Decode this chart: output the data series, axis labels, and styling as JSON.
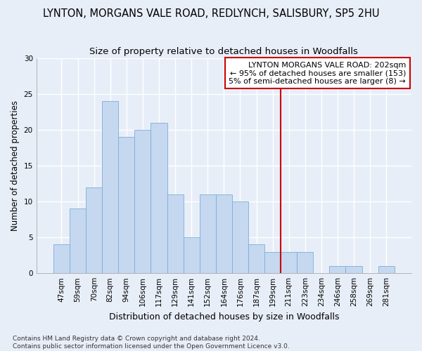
{
  "title": "LYNTON, MORGANS VALE ROAD, REDLYNCH, SALISBURY, SP5 2HU",
  "subtitle": "Size of property relative to detached houses in Woodfalls",
  "xlabel": "Distribution of detached houses by size in Woodfalls",
  "ylabel": "Number of detached properties",
  "categories": [
    "47sqm",
    "59sqm",
    "70sqm",
    "82sqm",
    "94sqm",
    "106sqm",
    "117sqm",
    "129sqm",
    "141sqm",
    "152sqm",
    "164sqm",
    "176sqm",
    "187sqm",
    "199sqm",
    "211sqm",
    "223sqm",
    "234sqm",
    "246sqm",
    "258sqm",
    "269sqm",
    "281sqm"
  ],
  "values": [
    4,
    9,
    12,
    24,
    19,
    20,
    21,
    11,
    5,
    11,
    11,
    10,
    4,
    3,
    3,
    3,
    0,
    1,
    1,
    0,
    1
  ],
  "bar_color": "#c5d8f0",
  "bar_edge_color": "#7aaed6",
  "vline_x_index": 13,
  "vline_color": "#cc0000",
  "annotation_text": "LYNTON MORGANS VALE ROAD: 202sqm\n← 95% of detached houses are smaller (153)\n5% of semi-detached houses are larger (8) →",
  "annotation_box_color": "#ffffff",
  "annotation_box_edge_color": "#cc0000",
  "ylim": [
    0,
    30
  ],
  "yticks": [
    0,
    5,
    10,
    15,
    20,
    25,
    30
  ],
  "background_color": "#e8eef8",
  "grid_color": "#ffffff",
  "footer_text": "Contains HM Land Registry data © Crown copyright and database right 2024.\nContains public sector information licensed under the Open Government Licence v3.0.",
  "title_fontsize": 10.5,
  "subtitle_fontsize": 9.5,
  "xlabel_fontsize": 9,
  "ylabel_fontsize": 8.5,
  "tick_fontsize": 7.5,
  "annotation_fontsize": 8,
  "footer_fontsize": 6.5
}
